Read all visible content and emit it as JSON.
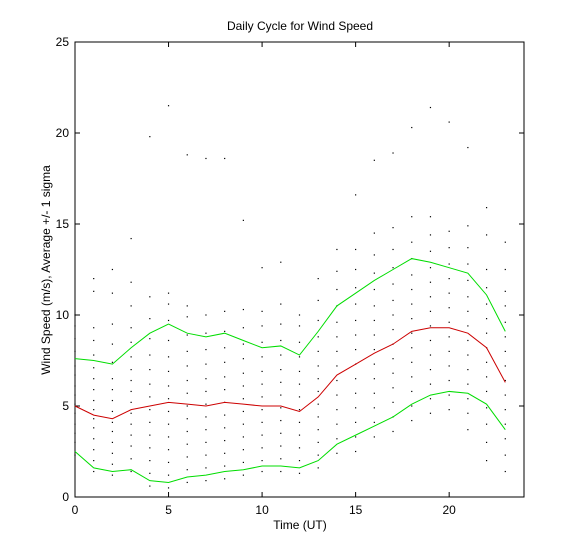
{
  "chart_data": {
    "type": "line",
    "title": "Daily Cycle for Wind Speed",
    "xlabel": "Time (UT)",
    "ylabel": "Wind Speed (m/s), Average +/- 1 sigma",
    "xlim": [
      0,
      24
    ],
    "ylim": [
      0,
      25
    ],
    "xticks": [
      0,
      5,
      10,
      15,
      20
    ],
    "yticks": [
      0,
      5,
      10,
      15,
      20,
      25
    ],
    "grid": false,
    "x": [
      0,
      1,
      2,
      3,
      4,
      5,
      6,
      7,
      8,
      9,
      10,
      11,
      12,
      13,
      14,
      15,
      16,
      17,
      18,
      19,
      20,
      21,
      22,
      23
    ],
    "series": [
      {
        "role": "average",
        "color": "#cc0000",
        "values": [
          5.0,
          4.5,
          4.3,
          4.8,
          5.0,
          5.2,
          5.1,
          5.0,
          5.2,
          5.1,
          5.0,
          5.0,
          4.7,
          5.5,
          6.7,
          7.3,
          7.9,
          8.4,
          9.1,
          9.3,
          9.3,
          9.0,
          8.2,
          6.3
        ]
      },
      {
        "role": "average + 1 sigma",
        "color": "#00dd00",
        "values": [
          7.6,
          7.5,
          7.3,
          8.2,
          9.0,
          9.5,
          9.0,
          8.8,
          9.0,
          8.6,
          8.2,
          8.3,
          7.8,
          9.1,
          10.5,
          11.2,
          11.9,
          12.5,
          13.1,
          12.9,
          12.6,
          12.3,
          11.1,
          9.1
        ]
      },
      {
        "role": "average - 1 sigma",
        "color": "#00dd00",
        "values": [
          2.5,
          1.6,
          1.4,
          1.5,
          0.9,
          0.8,
          1.1,
          1.2,
          1.4,
          1.5,
          1.7,
          1.7,
          1.6,
          2.0,
          2.9,
          3.4,
          3.9,
          4.4,
          5.1,
          5.6,
          5.8,
          5.7,
          5.1,
          3.7
        ]
      }
    ],
    "scatter_color": "#000000",
    "scatter": [
      [
        0,
        2.3
      ],
      [
        0,
        3.0
      ],
      [
        0,
        3.5
      ],
      [
        0,
        4.0
      ],
      [
        0,
        4.6
      ],
      [
        0,
        5.1
      ],
      [
        0,
        5.6
      ],
      [
        0,
        6.1
      ],
      [
        0,
        6.7
      ],
      [
        0,
        7.2
      ],
      [
        0,
        8.0
      ],
      [
        0,
        8.7
      ],
      [
        0,
        9.4
      ],
      [
        0,
        10.0
      ],
      [
        1,
        1.4
      ],
      [
        1,
        2.0
      ],
      [
        1,
        2.6
      ],
      [
        1,
        3.2
      ],
      [
        1,
        3.8
      ],
      [
        1,
        4.3
      ],
      [
        1,
        4.8
      ],
      [
        1,
        5.3
      ],
      [
        1,
        5.9
      ],
      [
        1,
        6.5
      ],
      [
        1,
        7.1
      ],
      [
        1,
        7.8
      ],
      [
        1,
        8.6
      ],
      [
        1,
        9.3
      ],
      [
        1,
        11.3
      ],
      [
        1,
        12.0
      ],
      [
        2,
        1.2
      ],
      [
        2,
        1.8
      ],
      [
        2,
        2.4
      ],
      [
        2,
        3.0
      ],
      [
        2,
        3.6
      ],
      [
        2,
        4.1
      ],
      [
        2,
        4.7
      ],
      [
        2,
        5.3
      ],
      [
        2,
        5.9
      ],
      [
        2,
        6.5
      ],
      [
        2,
        7.4
      ],
      [
        2,
        8.4
      ],
      [
        2,
        9.5
      ],
      [
        2,
        11.2
      ],
      [
        2,
        12.5
      ],
      [
        3,
        1.4
      ],
      [
        3,
        2.1
      ],
      [
        3,
        2.8
      ],
      [
        3,
        3.4
      ],
      [
        3,
        4.0
      ],
      [
        3,
        4.6
      ],
      [
        3,
        5.2
      ],
      [
        3,
        5.8
      ],
      [
        3,
        6.4
      ],
      [
        3,
        7.0
      ],
      [
        3,
        7.7
      ],
      [
        3,
        8.5
      ],
      [
        3,
        9.3
      ],
      [
        3,
        10.5
      ],
      [
        3,
        11.8
      ],
      [
        3,
        14.2
      ],
      [
        4,
        0.6
      ],
      [
        4,
        1.3
      ],
      [
        4,
        2.0
      ],
      [
        4,
        2.7
      ],
      [
        4,
        3.4
      ],
      [
        4,
        4.1
      ],
      [
        4,
        4.8
      ],
      [
        4,
        5.5
      ],
      [
        4,
        6.2
      ],
      [
        4,
        7.0
      ],
      [
        4,
        7.8
      ],
      [
        4,
        8.7
      ],
      [
        4,
        9.8
      ],
      [
        4,
        11.0
      ],
      [
        4,
        19.8
      ],
      [
        5,
        0.5
      ],
      [
        5,
        1.2
      ],
      [
        5,
        1.9
      ],
      [
        5,
        2.6
      ],
      [
        5,
        3.3
      ],
      [
        5,
        4.0
      ],
      [
        5,
        4.7
      ],
      [
        5,
        5.4
      ],
      [
        5,
        6.1
      ],
      [
        5,
        6.9
      ],
      [
        5,
        7.7
      ],
      [
        5,
        8.6
      ],
      [
        5,
        9.7
      ],
      [
        5,
        10.6
      ],
      [
        5,
        11.2
      ],
      [
        5,
        21.5
      ],
      [
        6,
        0.8
      ],
      [
        6,
        1.5
      ],
      [
        6,
        2.2
      ],
      [
        6,
        2.9
      ],
      [
        6,
        3.6
      ],
      [
        6,
        4.3
      ],
      [
        6,
        5.0
      ],
      [
        6,
        5.7
      ],
      [
        6,
        6.4
      ],
      [
        6,
        7.2
      ],
      [
        6,
        8.0
      ],
      [
        6,
        8.9
      ],
      [
        6,
        9.9
      ],
      [
        6,
        10.5
      ],
      [
        6,
        18.8
      ],
      [
        7,
        0.9
      ],
      [
        7,
        1.6
      ],
      [
        7,
        2.3
      ],
      [
        7,
        3.0
      ],
      [
        7,
        3.7
      ],
      [
        7,
        4.4
      ],
      [
        7,
        5.1
      ],
      [
        7,
        5.8
      ],
      [
        7,
        6.5
      ],
      [
        7,
        7.3
      ],
      [
        7,
        8.1
      ],
      [
        7,
        9.0
      ],
      [
        7,
        10.0
      ],
      [
        7,
        18.6
      ],
      [
        8,
        1.0
      ],
      [
        8,
        1.7
      ],
      [
        8,
        2.4
      ],
      [
        8,
        3.1
      ],
      [
        8,
        3.8
      ],
      [
        8,
        4.5
      ],
      [
        8,
        5.2
      ],
      [
        8,
        5.9
      ],
      [
        8,
        6.6
      ],
      [
        8,
        7.4
      ],
      [
        8,
        8.2
      ],
      [
        8,
        9.1
      ],
      [
        8,
        10.2
      ],
      [
        8,
        18.6
      ],
      [
        9,
        1.2
      ],
      [
        9,
        1.9
      ],
      [
        9,
        2.6
      ],
      [
        9,
        3.3
      ],
      [
        9,
        4.0
      ],
      [
        9,
        4.7
      ],
      [
        9,
        5.4
      ],
      [
        9,
        6.1
      ],
      [
        9,
        6.8
      ],
      [
        9,
        7.6
      ],
      [
        9,
        8.4
      ],
      [
        9,
        9.3
      ],
      [
        9,
        10.3
      ],
      [
        9,
        15.2
      ],
      [
        10,
        1.4
      ],
      [
        10,
        2.0
      ],
      [
        10,
        2.7
      ],
      [
        10,
        3.4
      ],
      [
        10,
        4.1
      ],
      [
        10,
        4.8
      ],
      [
        10,
        5.5
      ],
      [
        10,
        6.2
      ],
      [
        10,
        6.9
      ],
      [
        10,
        7.7
      ],
      [
        10,
        8.5
      ],
      [
        10,
        9.4
      ],
      [
        10,
        10.2
      ],
      [
        10,
        12.6
      ],
      [
        11,
        1.4
      ],
      [
        11,
        2.1
      ],
      [
        11,
        2.8
      ],
      [
        11,
        3.5
      ],
      [
        11,
        4.2
      ],
      [
        11,
        4.9
      ],
      [
        11,
        5.6
      ],
      [
        11,
        6.3
      ],
      [
        11,
        7.0
      ],
      [
        11,
        7.8
      ],
      [
        11,
        8.6
      ],
      [
        11,
        9.5
      ],
      [
        11,
        10.6
      ],
      [
        11,
        12.9
      ],
      [
        12,
        1.3
      ],
      [
        12,
        2.0
      ],
      [
        12,
        2.7
      ],
      [
        12,
        3.4
      ],
      [
        12,
        4.1
      ],
      [
        12,
        4.8
      ],
      [
        12,
        5.5
      ],
      [
        12,
        6.2
      ],
      [
        12,
        6.9
      ],
      [
        12,
        7.7
      ],
      [
        12,
        8.5
      ],
      [
        12,
        9.4
      ],
      [
        12,
        10.0
      ],
      [
        13,
        1.6
      ],
      [
        13,
        2.3
      ],
      [
        13,
        3.0
      ],
      [
        13,
        3.7
      ],
      [
        13,
        4.4
      ],
      [
        13,
        5.1
      ],
      [
        13,
        5.8
      ],
      [
        13,
        6.5
      ],
      [
        13,
        7.2
      ],
      [
        13,
        8.0
      ],
      [
        13,
        8.8
      ],
      [
        13,
        9.7
      ],
      [
        13,
        10.8
      ],
      [
        13,
        12.0
      ],
      [
        14,
        2.4
      ],
      [
        14,
        3.2
      ],
      [
        14,
        4.0
      ],
      [
        14,
        4.8
      ],
      [
        14,
        5.6
      ],
      [
        14,
        6.4
      ],
      [
        14,
        7.2
      ],
      [
        14,
        8.0
      ],
      [
        14,
        8.8
      ],
      [
        14,
        9.6
      ],
      [
        14,
        10.5
      ],
      [
        14,
        11.4
      ],
      [
        14,
        12.4
      ],
      [
        14,
        13.6
      ],
      [
        15,
        2.5
      ],
      [
        15,
        3.3
      ],
      [
        15,
        4.1
      ],
      [
        15,
        4.9
      ],
      [
        15,
        5.7
      ],
      [
        15,
        6.5
      ],
      [
        15,
        7.3
      ],
      [
        15,
        8.1
      ],
      [
        15,
        8.9
      ],
      [
        15,
        9.7
      ],
      [
        15,
        10.6
      ],
      [
        15,
        11.5
      ],
      [
        15,
        12.5
      ],
      [
        15,
        13.6
      ],
      [
        15,
        16.6
      ],
      [
        16,
        3.3
      ],
      [
        16,
        4.1
      ],
      [
        16,
        4.9
      ],
      [
        16,
        5.7
      ],
      [
        16,
        6.5
      ],
      [
        16,
        7.3
      ],
      [
        16,
        8.1
      ],
      [
        16,
        8.9
      ],
      [
        16,
        9.7
      ],
      [
        16,
        10.5
      ],
      [
        16,
        11.4
      ],
      [
        16,
        12.3
      ],
      [
        16,
        13.3
      ],
      [
        16,
        14.5
      ],
      [
        16,
        18.5
      ],
      [
        17,
        3.6
      ],
      [
        17,
        4.4
      ],
      [
        17,
        5.2
      ],
      [
        17,
        6.0
      ],
      [
        17,
        6.8
      ],
      [
        17,
        7.6
      ],
      [
        17,
        8.4
      ],
      [
        17,
        9.2
      ],
      [
        17,
        10.0
      ],
      [
        17,
        10.8
      ],
      [
        17,
        11.7
      ],
      [
        17,
        12.6
      ],
      [
        17,
        13.6
      ],
      [
        17,
        14.8
      ],
      [
        17,
        18.9
      ],
      [
        18,
        4.2
      ],
      [
        18,
        5.0
      ],
      [
        18,
        5.8
      ],
      [
        18,
        6.6
      ],
      [
        18,
        7.4
      ],
      [
        18,
        8.2
      ],
      [
        18,
        9.0
      ],
      [
        18,
        9.8
      ],
      [
        18,
        10.6
      ],
      [
        18,
        11.4
      ],
      [
        18,
        12.2
      ],
      [
        18,
        13.1
      ],
      [
        18,
        14.0
      ],
      [
        18,
        15.4
      ],
      [
        18,
        20.3
      ],
      [
        19,
        4.6
      ],
      [
        19,
        5.4
      ],
      [
        19,
        6.2
      ],
      [
        19,
        7.0
      ],
      [
        19,
        7.8
      ],
      [
        19,
        8.6
      ],
      [
        19,
        9.4
      ],
      [
        19,
        10.2
      ],
      [
        19,
        11.0
      ],
      [
        19,
        11.8
      ],
      [
        19,
        12.6
      ],
      [
        19,
        13.5
      ],
      [
        19,
        14.4
      ],
      [
        19,
        15.4
      ],
      [
        19,
        21.4
      ],
      [
        20,
        4.8
      ],
      [
        20,
        5.6
      ],
      [
        20,
        6.4
      ],
      [
        20,
        7.2
      ],
      [
        20,
        8.0
      ],
      [
        20,
        8.8
      ],
      [
        20,
        9.6
      ],
      [
        20,
        10.4
      ],
      [
        20,
        11.2
      ],
      [
        20,
        12.0
      ],
      [
        20,
        12.8
      ],
      [
        20,
        13.7
      ],
      [
        20,
        14.6
      ],
      [
        20,
        20.6
      ],
      [
        21,
        3.7
      ],
      [
        21,
        4.6
      ],
      [
        21,
        5.4
      ],
      [
        21,
        6.2
      ],
      [
        21,
        7.0
      ],
      [
        21,
        7.8
      ],
      [
        21,
        8.6
      ],
      [
        21,
        9.4
      ],
      [
        21,
        10.2
      ],
      [
        21,
        11.0
      ],
      [
        21,
        11.9
      ],
      [
        21,
        12.8
      ],
      [
        21,
        13.7
      ],
      [
        21,
        14.9
      ],
      [
        21,
        19.2
      ],
      [
        22,
        2.0
      ],
      [
        22,
        3.0
      ],
      [
        22,
        4.0
      ],
      [
        22,
        4.9
      ],
      [
        22,
        5.8
      ],
      [
        22,
        6.6
      ],
      [
        22,
        7.4
      ],
      [
        22,
        8.2
      ],
      [
        22,
        9.0
      ],
      [
        22,
        9.8
      ],
      [
        22,
        10.6
      ],
      [
        22,
        11.5
      ],
      [
        22,
        12.5
      ],
      [
        22,
        14.4
      ],
      [
        22,
        15.9
      ],
      [
        23,
        1.4
      ],
      [
        23,
        2.3
      ],
      [
        23,
        3.2
      ],
      [
        23,
        4.0
      ],
      [
        23,
        4.8
      ],
      [
        23,
        5.6
      ],
      [
        23,
        6.4
      ],
      [
        23,
        7.2
      ],
      [
        23,
        8.0
      ],
      [
        23,
        8.8
      ],
      [
        23,
        9.6
      ],
      [
        23,
        10.5
      ],
      [
        23,
        11.3
      ],
      [
        23,
        12.5
      ],
      [
        23,
        14.0
      ]
    ]
  }
}
